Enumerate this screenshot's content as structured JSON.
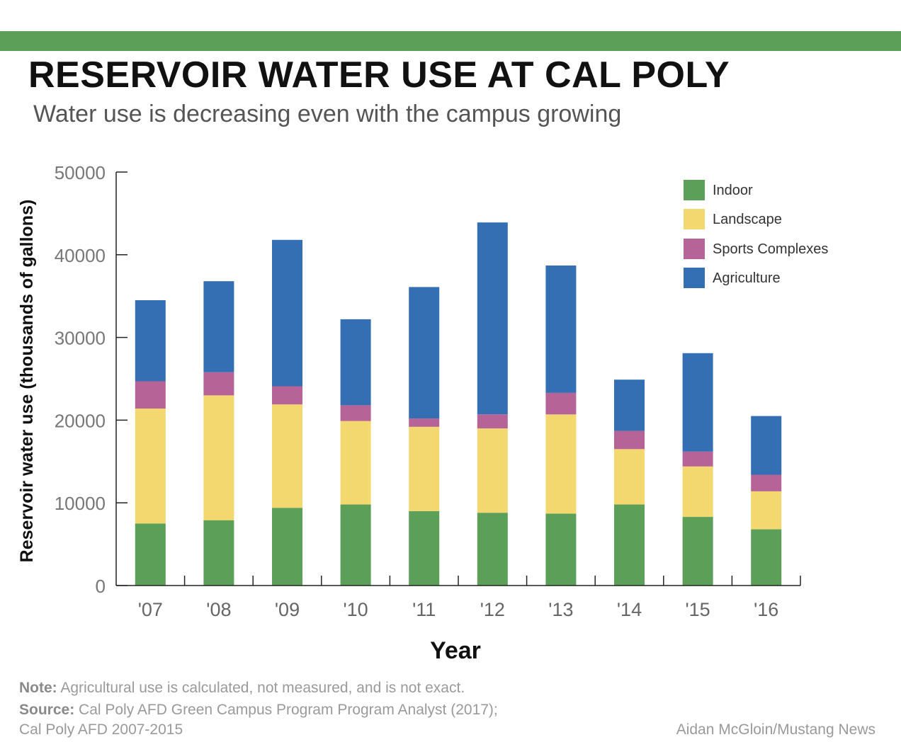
{
  "header": {
    "title": "RESERVOIR WATER USE AT CAL POLY",
    "subtitle": "Water use is decreasing even with the campus growing"
  },
  "chart_data": {
    "type": "bar",
    "stacked": true,
    "categories": [
      "'07",
      "'08",
      "'09",
      "'10",
      "'11",
      "'12",
      "'13",
      "'14",
      "'15",
      "'16"
    ],
    "series": [
      {
        "name": "Indoor",
        "color": "#5c9f59",
        "values": [
          7500,
          7900,
          9400,
          9800,
          9000,
          8800,
          8700,
          9800,
          8300,
          6800
        ]
      },
      {
        "name": "Landscape",
        "color": "#f2d86f",
        "values": [
          13900,
          15100,
          12500,
          10100,
          10200,
          10200,
          12000,
          6700,
          6100,
          4600
        ]
      },
      {
        "name": "Sports Complexes",
        "color": "#b66398",
        "values": [
          3300,
          2800,
          2200,
          1900,
          1000,
          1700,
          2600,
          2200,
          1800,
          2000
        ]
      },
      {
        "name": "Agriculture",
        "color": "#336fb2",
        "values": [
          9800,
          11000,
          17700,
          10400,
          15900,
          23200,
          15400,
          6200,
          11900,
          7100
        ]
      }
    ],
    "xlabel": "Year",
    "ylabel": "Reservoir water use (thousands of gallons)",
    "ylim": [
      0,
      50000
    ],
    "yticks": [
      "0",
      "10000",
      "20000",
      "30000",
      "40000",
      "50000"
    ],
    "legend": "top-right",
    "grid": false
  },
  "footer": {
    "note_label": "Note:",
    "note_text": " Agricultural use is calculated, not measured, and is not exact.",
    "source_label": "Source:",
    "source_text": " Cal Poly AFD Green Campus Program Program Analyst (2017);",
    "source_text2": "Cal Poly AFD 2007-2015",
    "credit": "Aidan McGloin/Mustang News"
  },
  "colors": {
    "accent_bar": "#5c9f59",
    "axis": "#222222"
  }
}
